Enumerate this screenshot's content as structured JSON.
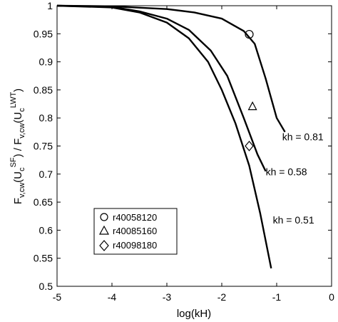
{
  "chart_data": {
    "type": "line",
    "xlabel": "log(kH)",
    "ylabel": {
      "F1": "F",
      "s1": "v,cw",
      "p1": "(U",
      "s2": "c",
      "sup2": "SF",
      "p2": ") / F",
      "s3": "v,cw",
      "p3": "(U",
      "s4": "c",
      "sup4": "LWT",
      "p4": ")"
    },
    "xlim": [
      -5,
      0
    ],
    "ylim": [
      0.5,
      1
    ],
    "x_ticks": [
      -5,
      -4,
      -3,
      -2,
      -1,
      0
    ],
    "x_tick_labels": [
      "-5",
      "-4",
      "-3",
      "-2",
      "-1",
      "0"
    ],
    "y_ticks": [
      0.5,
      0.55,
      0.6,
      0.65,
      0.7,
      0.75,
      0.8,
      0.85,
      0.9,
      0.95,
      1
    ],
    "y_tick_labels": [
      "0.5",
      "0.55",
      "0.6",
      "0.65",
      "0.7",
      "0.75",
      "0.8",
      "0.85",
      "0.9",
      "0.95",
      "1"
    ],
    "grid": false,
    "legend_position": "lower-left",
    "series": [
      {
        "name": "kh = 0.81",
        "color": "#000000",
        "points": [
          [
            -5,
            1.0
          ],
          [
            -4,
            0.999
          ],
          [
            -3,
            0.994
          ],
          [
            -2.5,
            0.988
          ],
          [
            -2,
            0.977
          ],
          [
            -1.6,
            0.955
          ],
          [
            -1.4,
            0.932
          ],
          [
            -1.2,
            0.87
          ],
          [
            -1.0,
            0.8
          ],
          [
            -0.85,
            0.775
          ]
        ]
      },
      {
        "name": "kh = 0.58",
        "color": "#000000",
        "points": [
          [
            -5,
            1.0
          ],
          [
            -4,
            0.998
          ],
          [
            -3.5,
            0.99
          ],
          [
            -3,
            0.977
          ],
          [
            -2.6,
            0.957
          ],
          [
            -2.2,
            0.92
          ],
          [
            -1.9,
            0.875
          ],
          [
            -1.6,
            0.8
          ],
          [
            -1.35,
            0.735
          ],
          [
            -1.2,
            0.705
          ]
        ]
      },
      {
        "name": "kh = 0.51",
        "color": "#000000",
        "points": [
          [
            -5,
            1.0
          ],
          [
            -4,
            0.997
          ],
          [
            -3.5,
            0.988
          ],
          [
            -3,
            0.97
          ],
          [
            -2.6,
            0.942
          ],
          [
            -2.25,
            0.9
          ],
          [
            -2.0,
            0.85
          ],
          [
            -1.75,
            0.79
          ],
          [
            -1.5,
            0.715
          ],
          [
            -1.3,
            0.63
          ],
          [
            -1.1,
            0.532
          ]
        ]
      }
    ],
    "markers": [
      {
        "name": "r40058120",
        "symbol": "circle",
        "x": -1.5,
        "y": 0.949
      },
      {
        "name": "r40085160",
        "symbol": "triangle",
        "x": -1.44,
        "y": 0.821
      },
      {
        "name": "r40098180",
        "symbol": "diamond",
        "x": -1.5,
        "y": 0.75
      }
    ],
    "annotations": [
      {
        "text": "kh = 0.81",
        "x": -0.9,
        "y": 0.76
      },
      {
        "text": "kh = 0.58",
        "x": -1.2,
        "y": 0.698
      },
      {
        "text": "kh = 0.51",
        "x": -1.07,
        "y": 0.612
      }
    ]
  }
}
